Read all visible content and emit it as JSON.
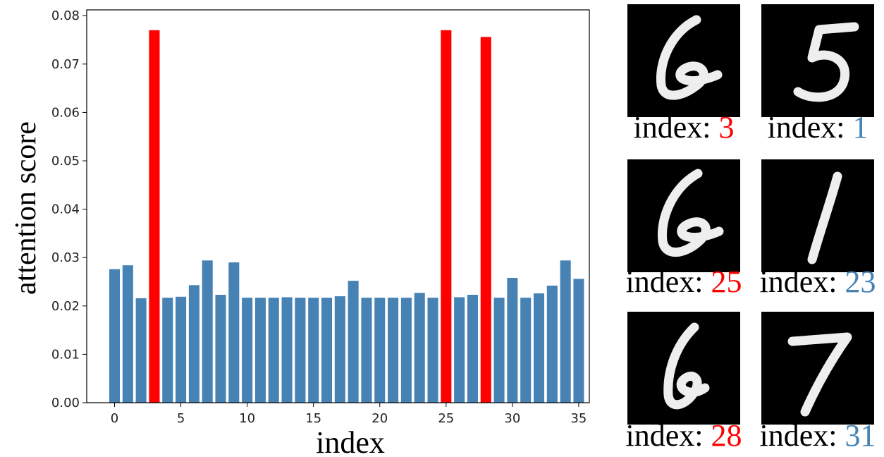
{
  "chart_data": {
    "type": "bar",
    "xlabel": "index",
    "ylabel": "attention score",
    "x": [
      0,
      1,
      2,
      3,
      4,
      5,
      6,
      7,
      8,
      9,
      10,
      11,
      12,
      13,
      14,
      15,
      16,
      17,
      18,
      19,
      20,
      21,
      22,
      23,
      24,
      25,
      26,
      27,
      28,
      29,
      30,
      31,
      32,
      33,
      34,
      35
    ],
    "values": [
      0.0276,
      0.0284,
      0.0216,
      0.077,
      0.0217,
      0.0219,
      0.0243,
      0.0294,
      0.0223,
      0.029,
      0.0217,
      0.0217,
      0.0217,
      0.0218,
      0.0217,
      0.0217,
      0.0217,
      0.022,
      0.0252,
      0.0217,
      0.0217,
      0.0217,
      0.0217,
      0.0227,
      0.0217,
      0.077,
      0.0218,
      0.0223,
      0.0756,
      0.0217,
      0.0258,
      0.0217,
      0.0226,
      0.0242,
      0.0294,
      0.0256
    ],
    "colors": [
      "#4682b4",
      "#4682b4",
      "#4682b4",
      "#ff0000",
      "#4682b4",
      "#4682b4",
      "#4682b4",
      "#4682b4",
      "#4682b4",
      "#4682b4",
      "#4682b4",
      "#4682b4",
      "#4682b4",
      "#4682b4",
      "#4682b4",
      "#4682b4",
      "#4682b4",
      "#4682b4",
      "#4682b4",
      "#4682b4",
      "#4682b4",
      "#4682b4",
      "#4682b4",
      "#4682b4",
      "#4682b4",
      "#ff0000",
      "#4682b4",
      "#4682b4",
      "#ff0000",
      "#4682b4",
      "#4682b4",
      "#4682b4",
      "#4682b4",
      "#4682b4",
      "#4682b4",
      "#4682b4"
    ],
    "xlim": [
      -2.1,
      35.8
    ],
    "xticks": [
      0,
      5,
      10,
      15,
      20,
      25,
      30,
      35
    ],
    "ylim": [
      0,
      0.0812
    ],
    "yticks": [
      {
        "value": 0,
        "label": "0.00"
      },
      0.01,
      0.02,
      0.03,
      0.04,
      0.05,
      0.06,
      0.07,
      0.08
    ]
  },
  "images": [
    {
      "prefix": "index:",
      "index": 3,
      "color": "#ff0000"
    },
    {
      "prefix": "index:",
      "index": 1,
      "color": "#4682b4"
    },
    {
      "prefix": "index:",
      "index": 25,
      "color": "#ff0000"
    },
    {
      "prefix": "index:",
      "index": 23,
      "color": "#4682b4"
    },
    {
      "prefix": "index:",
      "index": 28,
      "color": "#ff0000"
    },
    {
      "prefix": "index:",
      "index": 31,
      "color": "#4682b4"
    }
  ]
}
